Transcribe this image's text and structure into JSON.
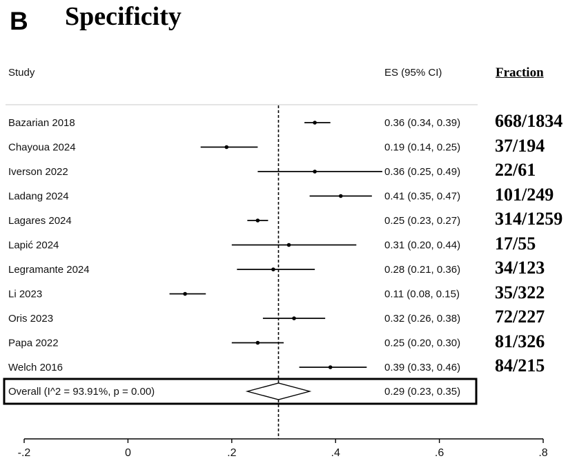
{
  "panel_letter": "B",
  "chart_data": {
    "type": "forest",
    "title": "Specificity",
    "columns": {
      "study": "Study",
      "es": "ES (95% CI)",
      "fraction": "Fraction"
    },
    "xlim": [
      -0.2,
      0.8
    ],
    "x_ticks": [
      -0.2,
      0,
      0.2,
      0.4,
      0.6,
      0.8
    ],
    "x_tick_labels": [
      "-.2",
      "0",
      ".2",
      ".4",
      ".6",
      ".8"
    ],
    "reference_line": 0.29,
    "studies": [
      {
        "name": "Bazarian 2018",
        "es": 0.36,
        "low": 0.34,
        "high": 0.39,
        "es_label": "0.36 (0.34, 0.39)",
        "fraction": "668/1834"
      },
      {
        "name": "Chayoua 2024",
        "es": 0.19,
        "low": 0.14,
        "high": 0.25,
        "es_label": "0.19 (0.14, 0.25)",
        "fraction": "37/194"
      },
      {
        "name": "Iverson 2022",
        "es": 0.36,
        "low": 0.25,
        "high": 0.49,
        "es_label": "0.36 (0.25, 0.49)",
        "fraction": "22/61"
      },
      {
        "name": "Ladang 2024",
        "es": 0.41,
        "low": 0.35,
        "high": 0.47,
        "es_label": "0.41 (0.35, 0.47)",
        "fraction": "101/249"
      },
      {
        "name": "Lagares 2024",
        "es": 0.25,
        "low": 0.23,
        "high": 0.27,
        "es_label": "0.25 (0.23, 0.27)",
        "fraction": "314/1259"
      },
      {
        "name": "Lapić 2024",
        "es": 0.31,
        "low": 0.2,
        "high": 0.44,
        "es_label": "0.31 (0.20, 0.44)",
        "fraction": "17/55"
      },
      {
        "name": "Legramante 2024",
        "es": 0.28,
        "low": 0.21,
        "high": 0.36,
        "es_label": "0.28 (0.21, 0.36)",
        "fraction": "34/123"
      },
      {
        "name": "Li 2023",
        "es": 0.11,
        "low": 0.08,
        "high": 0.15,
        "es_label": "0.11 (0.08, 0.15)",
        "fraction": "35/322"
      },
      {
        "name": "Oris 2023",
        "es": 0.32,
        "low": 0.26,
        "high": 0.38,
        "es_label": "0.32 (0.26, 0.38)",
        "fraction": "72/227"
      },
      {
        "name": "Papa 2022",
        "es": 0.25,
        "low": 0.2,
        "high": 0.3,
        "es_label": "0.25 (0.20, 0.30)",
        "fraction": "81/326"
      },
      {
        "name": "Welch 2016",
        "es": 0.39,
        "low": 0.33,
        "high": 0.46,
        "es_label": "0.39 (0.33, 0.46)",
        "fraction": "84/215"
      }
    ],
    "overall": {
      "label": "Overall  (I^2 = 93.91%, p = 0.00)",
      "es": 0.29,
      "low": 0.23,
      "high": 0.35,
      "es_label": "0.29 (0.23, 0.35)"
    }
  }
}
